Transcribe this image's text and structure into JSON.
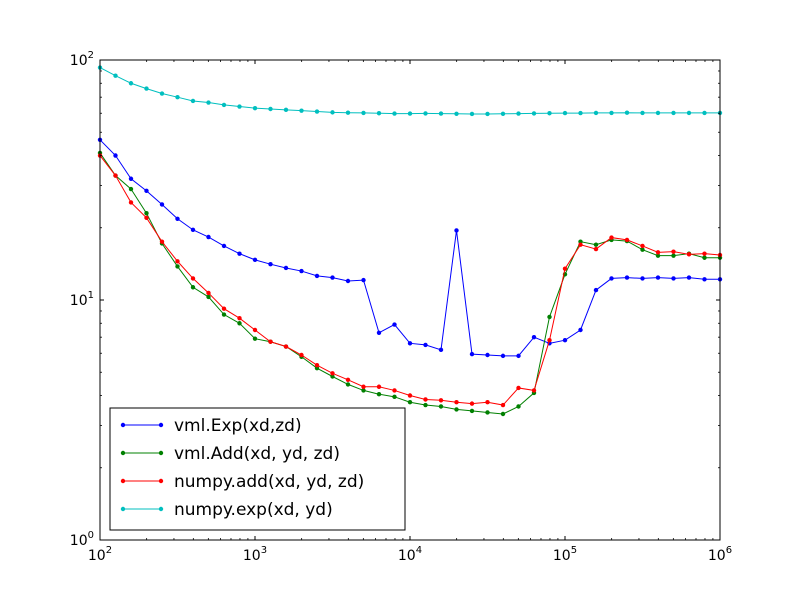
{
  "chart_data": {
    "type": "line",
    "xscale": "log",
    "yscale": "log",
    "xlim": [
      100,
      1000000
    ],
    "ylim": [
      1,
      100
    ],
    "grid": false,
    "legend_position": "lower-left",
    "xticks": [
      {
        "value": 100,
        "base": "10",
        "exp": "2"
      },
      {
        "value": 1000,
        "base": "10",
        "exp": "3"
      },
      {
        "value": 10000,
        "base": "10",
        "exp": "4"
      },
      {
        "value": 100000,
        "base": "10",
        "exp": "5"
      },
      {
        "value": 1000000,
        "base": "10",
        "exp": "6"
      }
    ],
    "yticks": [
      {
        "value": 1,
        "base": "10",
        "exp": "0"
      },
      {
        "value": 10,
        "base": "10",
        "exp": "1"
      },
      {
        "value": 100,
        "base": "10",
        "exp": "2"
      }
    ],
    "x": [
      100,
      125.9,
      158.5,
      199.5,
      251.2,
      316.2,
      398.1,
      501.2,
      631,
      794.3,
      1000,
      1258.9,
      1584.9,
      1995.3,
      2511.9,
      3162.3,
      3981.1,
      5011.9,
      6309.6,
      7943.3,
      10000,
      12589,
      15849,
      19953,
      25119,
      31623,
      39811,
      50119,
      63096,
      79433,
      100000,
      125893,
      158489,
      199526,
      251189,
      316228,
      398107,
      501187,
      630957,
      794328,
      1000000
    ],
    "series": [
      {
        "name": "vml.Exp(xd,zd)",
        "color": "#0000ff",
        "values": [
          46.5,
          40,
          32,
          28.5,
          25,
          21.8,
          19.6,
          18.3,
          16.8,
          15.6,
          14.7,
          14.1,
          13.6,
          13.2,
          12.6,
          12.4,
          12.0,
          12.1,
          7.3,
          7.9,
          6.6,
          6.5,
          6.2,
          19.5,
          5.95,
          5.9,
          5.85,
          5.85,
          7.0,
          6.6,
          6.8,
          7.5,
          11.0,
          12.3,
          12.4,
          12.3,
          12.4,
          12.3,
          12.4,
          12.2,
          12.2
        ]
      },
      {
        "name": "vml.Add(xd, yd, zd)",
        "color": "#008000",
        "values": [
          41,
          33,
          29,
          23,
          17.2,
          13.8,
          11.3,
          10.3,
          8.7,
          8.0,
          6.9,
          6.7,
          6.4,
          5.8,
          5.2,
          4.8,
          4.45,
          4.2,
          4.05,
          3.95,
          3.75,
          3.65,
          3.6,
          3.5,
          3.45,
          3.4,
          3.35,
          3.6,
          4.1,
          8.5,
          12.8,
          17.5,
          17.0,
          17.8,
          17.6,
          16.2,
          15.3,
          15.3,
          15.6,
          15.0,
          15.0
        ]
      },
      {
        "name": "numpy.add(xd, yd, zd)",
        "color": "#ff0000",
        "values": [
          40,
          33,
          25.5,
          22,
          17.5,
          14.5,
          12.3,
          10.7,
          9.2,
          8.4,
          7.5,
          6.7,
          6.4,
          5.9,
          5.35,
          4.95,
          4.65,
          4.35,
          4.35,
          4.2,
          4.0,
          3.85,
          3.82,
          3.75,
          3.7,
          3.75,
          3.65,
          4.3,
          4.2,
          6.8,
          13.5,
          17.0,
          16.3,
          18.2,
          17.8,
          16.8,
          15.8,
          15.9,
          15.5,
          15.6,
          15.4
        ]
      },
      {
        "name": "numpy.exp(xd, yd)",
        "color": "#00bfbf",
        "values": [
          93,
          86,
          80,
          76,
          72.5,
          70,
          67.5,
          66.5,
          65,
          64,
          63,
          62.5,
          62,
          61.5,
          61,
          60.5,
          60.3,
          60.2,
          60,
          59.8,
          59.8,
          59.9,
          59.8,
          59.7,
          59.6,
          59.6,
          59.7,
          59.8,
          59.9,
          60,
          60.1,
          60.1,
          60.2,
          60.2,
          60.3,
          60.2,
          60.2,
          60.2,
          60.2,
          60.2,
          60.2
        ]
      }
    ]
  }
}
